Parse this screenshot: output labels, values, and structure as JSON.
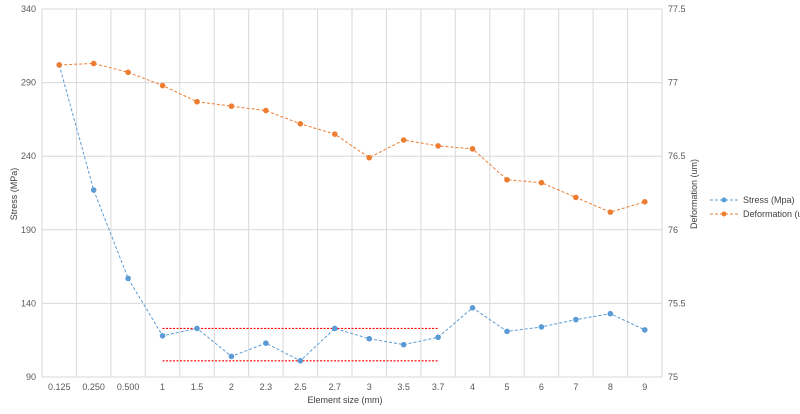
{
  "chart_data": {
    "type": "line",
    "title": "",
    "xlabel": "Element size (mm)",
    "ylabel_left": "Stress (MPa)",
    "ylabel_right": "Deformation (um)",
    "categories": [
      "0.125",
      "0.250",
      "0.500",
      "1",
      "1.5",
      "2",
      "2.3",
      "2.5",
      "2.7",
      "3",
      "3.5",
      "3.7",
      "4",
      "5",
      "6",
      "7",
      "8",
      "9"
    ],
    "y_left": {
      "min": 90,
      "max": 340,
      "ticks": [
        "90",
        "140",
        "190",
        "240",
        "290",
        "340"
      ]
    },
    "y_right": {
      "min": 75,
      "max": 77.5,
      "ticks": [
        "75",
        "75.5",
        "76",
        "76.5",
        "77",
        "77.5"
      ]
    },
    "grid": true,
    "legend_position": "right",
    "series": [
      {
        "name": "Stress (Mpa)",
        "axis": "left",
        "color": "#5b9bd5",
        "values": [
          302,
          217,
          157,
          118,
          123,
          104,
          113,
          101,
          123,
          116,
          112,
          117,
          137,
          121,
          124,
          129,
          133,
          122
        ]
      },
      {
        "name": "Deformation (um)",
        "axis": "right",
        "color": "#ed7d31",
        "values": [
          77.12,
          77.13,
          77.07,
          76.98,
          76.87,
          76.84,
          76.81,
          76.72,
          76.65,
          76.49,
          76.61,
          76.57,
          76.55,
          76.34,
          76.32,
          76.22,
          76.12,
          76.19
        ]
      }
    ],
    "reference_lines": [
      {
        "axis": "left",
        "value": 123,
        "from_category": "1",
        "to_category": "3.7",
        "color": "#ff0000"
      },
      {
        "axis": "left",
        "value": 101,
        "from_category": "1",
        "to_category": "3.7",
        "color": "#ff0000"
      }
    ]
  }
}
